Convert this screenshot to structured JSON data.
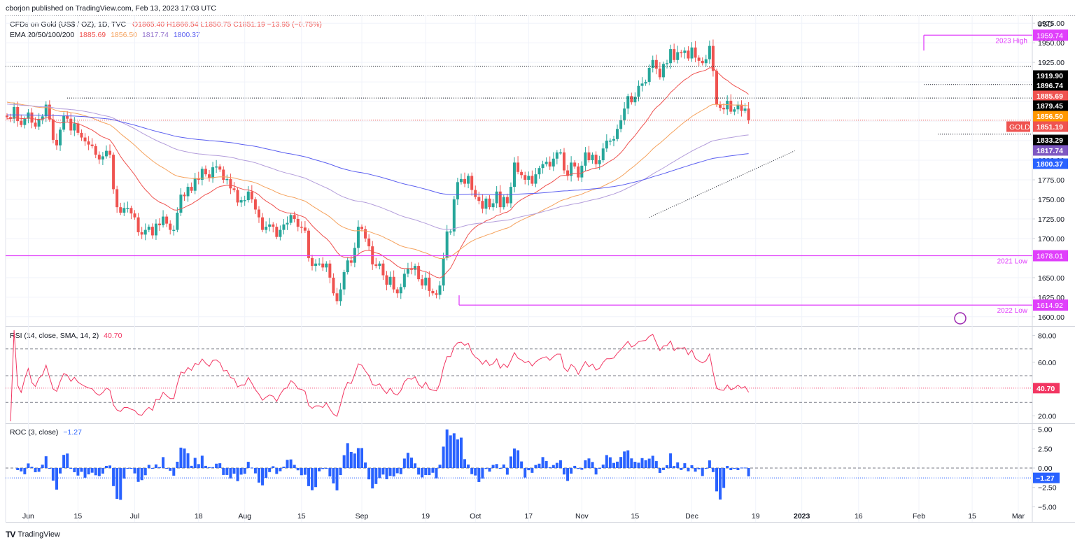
{
  "header": {
    "publisher": "cborjon published on TradingView.com, Feb 13, 2023 17:03 UTC",
    "symbol": "CFDs on Gold (US$ / OZ), 1D, TVC",
    "ohlc": "O1865.40 H1866.54 L1850.75 C1851.19 −13.95 (−0.75%)",
    "ema_label": "EMA 20/50/100/200",
    "ema_values": [
      "1885.69",
      "1856.50",
      "1817.74",
      "1800.37"
    ],
    "currency": "USD"
  },
  "colors": {
    "up": "#26a69a",
    "down": "#ef5350",
    "ema20": "#ef5350",
    "ema50": "#f5a25d",
    "ema100": "#b39ddb",
    "ema200": "#5b5ff0",
    "annotation": "#e040fb",
    "rsi": "#f23662",
    "roc": "#2962ff"
  },
  "annotations": {
    "high_2023": {
      "value": 1959.74,
      "label": "2023 High",
      "price_tag": "1959.74"
    },
    "low_2021": {
      "value": 1678.01,
      "label": "2021 Low",
      "price_tag": "1678.01"
    },
    "low_2022": {
      "value": 1614.92,
      "label": "2022 Low",
      "price_tag": "1614.92"
    }
  },
  "price_tags": [
    {
      "value": 1919.9,
      "text": "1919.90",
      "kind": "level"
    },
    {
      "value": 1896.74,
      "text": "1896.74",
      "kind": "level"
    },
    {
      "value": 1885.69,
      "text": "1885.69",
      "kind": "ema20"
    },
    {
      "value": 1879.45,
      "text": "1879.45",
      "kind": "level"
    },
    {
      "value": 1856.5,
      "text": "1856.50",
      "kind": "ema50"
    },
    {
      "value": 1851.19,
      "text": "1851.19",
      "kind": "last",
      "symbol": "GOLD"
    },
    {
      "value": 1833.29,
      "text": "1833.29",
      "kind": "level"
    },
    {
      "value": 1817.74,
      "text": "1817.74",
      "kind": "ema100"
    },
    {
      "value": 1800.37,
      "text": "1800.37",
      "kind": "ema200"
    }
  ],
  "x_axis_labels": [
    {
      "day": 6,
      "text": "Jun"
    },
    {
      "day": 20,
      "text": "15"
    },
    {
      "day": 36,
      "text": "Jul"
    },
    {
      "day": 54,
      "text": "18"
    },
    {
      "day": 67,
      "text": "Aug"
    },
    {
      "day": 83,
      "text": "15"
    },
    {
      "day": 100,
      "text": "Sep"
    },
    {
      "day": 118,
      "text": "19"
    },
    {
      "day": 132,
      "text": "Oct"
    },
    {
      "day": 147,
      "text": "17"
    },
    {
      "day": 162,
      "text": "Nov"
    },
    {
      "day": 177,
      "text": "15"
    },
    {
      "day": 193,
      "text": "Dec"
    },
    {
      "day": 211,
      "text": "19"
    },
    {
      "day": 224,
      "text": "2023"
    },
    {
      "day": 240,
      "text": "16"
    },
    {
      "day": 257,
      "text": "Feb"
    },
    {
      "day": 272,
      "text": "15"
    },
    {
      "day": 285,
      "text": "Mar"
    }
  ],
  "rsi": {
    "label": "RSI (14, close, SMA, 14, 2)",
    "last": "40.70",
    "last_value": 40.7,
    "ticks": [
      "80.00",
      "60.00",
      "40.00",
      "20.00"
    ],
    "ylim": [
      15,
      85
    ],
    "levels": [
      70,
      50,
      30
    ]
  },
  "roc": {
    "label": "ROC (3, close)",
    "last": "−1.27",
    "last_value": -1.27,
    "ticks": [
      "5.00",
      "2.50",
      "0.00",
      "−2.50",
      "−5.00"
    ],
    "ylim": [
      -5.5,
      5.5
    ]
  },
  "brand": "TradingView",
  "chart_data": {
    "type": "candlestick",
    "title": "CFDs on Gold (US$ / OZ), 1D, TVC",
    "ylabel": "USD",
    "ylim": [
      1590,
      1985
    ],
    "yticks": [
      1600,
      1625,
      1650,
      1675,
      1700,
      1725,
      1750,
      1775,
      1800,
      1825,
      1850,
      1875,
      1900,
      1925,
      1950,
      1975
    ],
    "x_unit": "trading days from 30 May 2022",
    "closes": [
      1855,
      1853,
      1868,
      1850,
      1845,
      1853,
      1861,
      1848,
      1843,
      1852,
      1856,
      1871,
      1852,
      1826,
      1819,
      1839,
      1857,
      1853,
      1838,
      1847,
      1835,
      1829,
      1824,
      1820,
      1818,
      1807,
      1801,
      1805,
      1812,
      1807,
      1763,
      1740,
      1733,
      1739,
      1739,
      1732,
      1727,
      1708,
      1705,
      1711,
      1715,
      1704,
      1719,
      1717,
      1728,
      1719,
      1711,
      1711,
      1733,
      1756,
      1754,
      1766,
      1761,
      1777,
      1775,
      1789,
      1782,
      1777,
      1791,
      1792,
      1788,
      1775,
      1776,
      1764,
      1762,
      1746,
      1749,
      1749,
      1760,
      1750,
      1737,
      1727,
      1711,
      1715,
      1718,
      1715,
      1702,
      1711,
      1718,
      1720,
      1730,
      1725,
      1715,
      1714,
      1710,
      1675,
      1665,
      1668,
      1668,
      1663,
      1668,
      1650,
      1630,
      1620,
      1635,
      1657,
      1672,
      1669,
      1688,
      1715,
      1712,
      1700,
      1690,
      1667,
      1665,
      1668,
      1653,
      1641,
      1651,
      1635,
      1630,
      1638,
      1655,
      1662,
      1660,
      1665,
      1648,
      1640,
      1650,
      1633,
      1630,
      1628,
      1640,
      1675,
      1709,
      1709,
      1750,
      1772,
      1776,
      1770,
      1780,
      1762,
      1753,
      1748,
      1738,
      1751,
      1740,
      1745,
      1760,
      1740,
      1753,
      1745,
      1766,
      1797,
      1785,
      1781,
      1775,
      1780,
      1770,
      1782,
      1790,
      1795,
      1798,
      1792,
      1802,
      1810,
      1810,
      1787,
      1780,
      1797,
      1792,
      1778,
      1793,
      1810,
      1800,
      1807,
      1795,
      1800,
      1815,
      1825,
      1825,
      1827,
      1840,
      1851,
      1866,
      1882,
      1874,
      1881,
      1895,
      1898,
      1900,
      1918,
      1928,
      1917,
      1906,
      1923,
      1924,
      1942,
      1928,
      1938,
      1937,
      1940,
      1930,
      1944,
      1931,
      1927,
      1924,
      1929,
      1946,
      1914,
      1871,
      1867,
      1865,
      1876,
      1862,
      1865,
      1871,
      1863,
      1866,
      1851
    ],
    "ema": [
      {
        "name": "EMA 20",
        "period": 20,
        "last": 1885.69
      },
      {
        "name": "EMA 50",
        "period": 50,
        "last": 1856.5
      },
      {
        "name": "EMA 100",
        "period": 100,
        "last": 1817.74
      },
      {
        "name": "EMA 200",
        "period": 200,
        "last": 1800.37
      }
    ]
  }
}
